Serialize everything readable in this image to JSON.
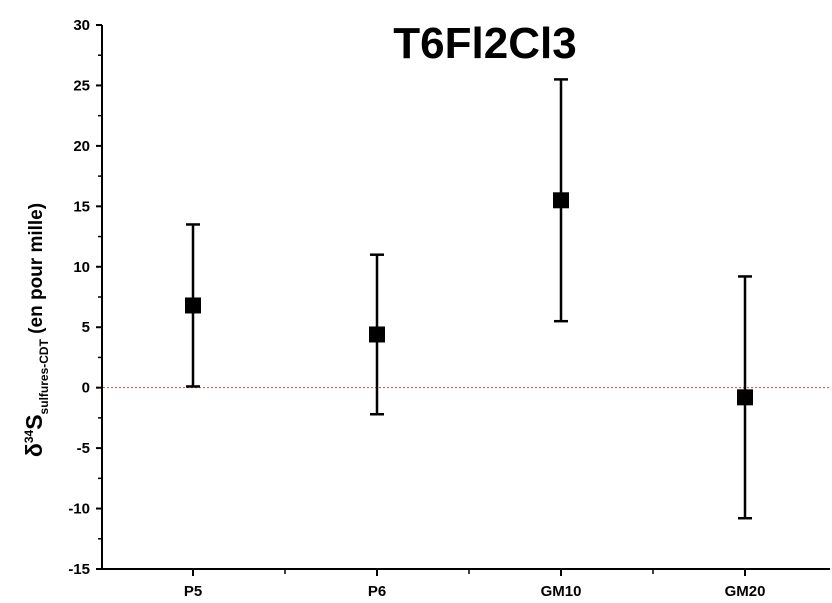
{
  "chart_data": {
    "type": "scatter",
    "title": "T6Fl2Cl3",
    "ylabel": {
      "delta": "δ",
      "superscript": "34",
      "symbol": "S",
      "subscript": "sulfures-CDT",
      "suffix": " (en pour mille)"
    },
    "xlabel": "",
    "categories": [
      "P5",
      "P6",
      "GM10",
      "GM20"
    ],
    "series": [
      {
        "values": [
          6.8,
          4.4,
          15.5,
          -0.8
        ],
        "error_low": [
          0.1,
          -2.2,
          5.5,
          -10.8
        ],
        "error_high": [
          13.5,
          11.0,
          25.5,
          9.2
        ],
        "marker": "square",
        "color": "#000000"
      }
    ],
    "ylim": [
      -15,
      30
    ],
    "yticks": [
      "-15",
      "-10",
      "-5",
      "0",
      "5",
      "10",
      "15",
      "20",
      "25",
      "30"
    ],
    "reference_line": {
      "y": 0,
      "color": "#e8433a",
      "style": "dotted"
    },
    "grid": false
  }
}
